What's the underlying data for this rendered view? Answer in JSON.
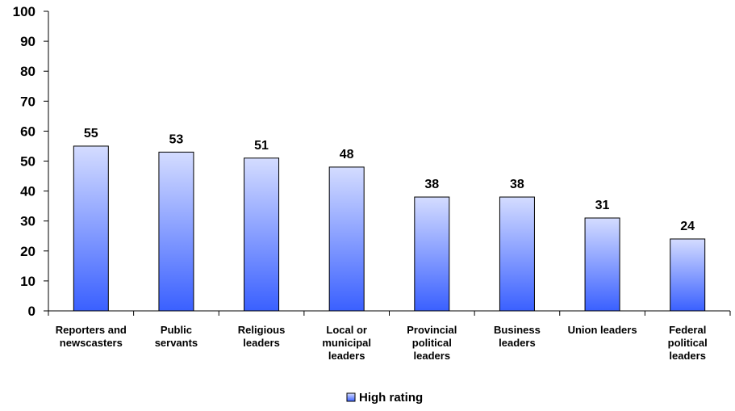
{
  "chart_data": {
    "type": "bar",
    "categories": [
      [
        "Reporters and",
        "newscasters"
      ],
      [
        "Public",
        "servants"
      ],
      [
        "Religious",
        "leaders"
      ],
      [
        "Local or",
        "municipal",
        "leaders"
      ],
      [
        "Provincial",
        "political",
        "leaders"
      ],
      [
        "Business",
        "leaders"
      ],
      [
        "Union leaders"
      ],
      [
        "Federal",
        "political",
        "leaders"
      ]
    ],
    "series": [
      {
        "name": "High rating",
        "values": [
          55,
          53,
          51,
          48,
          38,
          38,
          31,
          24
        ]
      }
    ],
    "ylim": [
      0,
      100
    ],
    "yticks": [
      0,
      10,
      20,
      30,
      40,
      50,
      60,
      70,
      80,
      90,
      100
    ],
    "grid": false,
    "legend_position": "bottom",
    "colors": {
      "bar_top": "#d4dcff",
      "bar_bottom": "#3a60ff",
      "bar_stroke": "#000000",
      "axis": "#000000"
    }
  }
}
